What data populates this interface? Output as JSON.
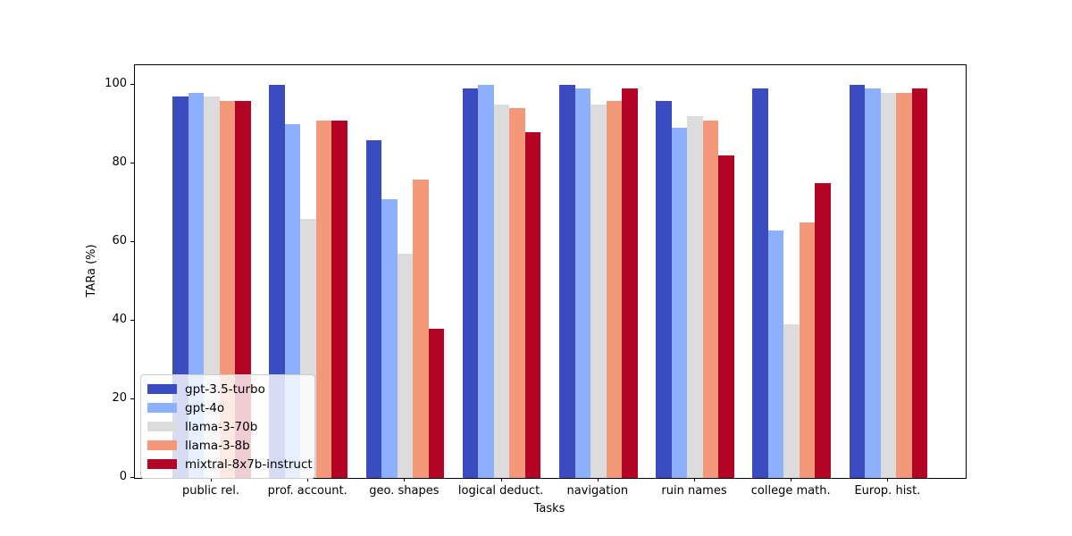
{
  "chart_data": {
    "type": "bar",
    "title": "",
    "xlabel": "Tasks",
    "ylabel": "TARa (%)",
    "categories": [
      "public rel.",
      "prof. account.",
      "geo. shapes",
      "logical deduct.",
      "navigation",
      "ruin names",
      "college math.",
      "Europ. hist."
    ],
    "series": [
      {
        "name": "gpt-3.5-turbo",
        "color": "#3b4cc0",
        "values": [
          97,
          100,
          86,
          99,
          100,
          96,
          99,
          100
        ]
      },
      {
        "name": "gpt-4o",
        "color": "#8caffe",
        "values": [
          98,
          90,
          71,
          100,
          99,
          89,
          63,
          99
        ]
      },
      {
        "name": "llama-3-70b",
        "color": "#dddcdc",
        "values": [
          97,
          66,
          57,
          95,
          95,
          92,
          39,
          98
        ]
      },
      {
        "name": "llama-3-8b",
        "color": "#f4987a",
        "values": [
          96,
          91,
          76,
          94,
          96,
          91,
          65,
          98
        ]
      },
      {
        "name": "mixtral-8x7b-instruct",
        "color": "#b40426",
        "values": [
          96,
          91,
          38,
          88,
          99,
          82,
          75,
          99
        ]
      }
    ],
    "yticks": [
      0,
      20,
      40,
      60,
      80,
      100
    ],
    "ylim": [
      0,
      105
    ],
    "grid": false,
    "legend_position": "lower left",
    "axis_color": "#000000",
    "background_color": "#ffffff"
  }
}
